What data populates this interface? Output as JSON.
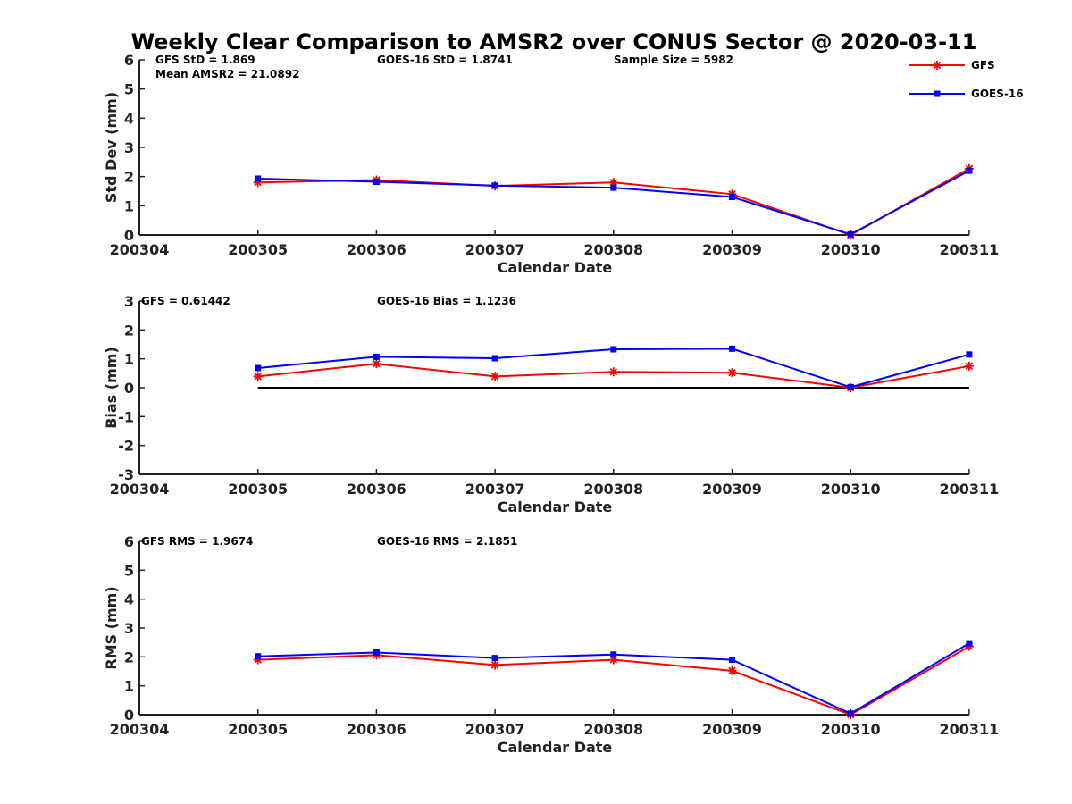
{
  "figure": {
    "title": "Weekly Clear Comparison to AMSR2 over CONUS Sector @ 2020-03-11"
  },
  "legend": {
    "placement": "top-right",
    "entries": [
      {
        "name": "GFS",
        "color": "#ff0000",
        "marker": "asterisk"
      },
      {
        "name": "GOES-16",
        "color": "#0000ff",
        "marker": "square"
      }
    ]
  },
  "chart_data": [
    {
      "type": "line",
      "id": "stddev",
      "title": "",
      "xlabel": "Calendar Date",
      "ylabel": "Std Dev (mm)",
      "categories": [
        "200304",
        "200305",
        "200306",
        "200307",
        "200308",
        "200309",
        "200310",
        "200311"
      ],
      "ylim": [
        0,
        6
      ],
      "yticks": [
        "0",
        "1",
        "2",
        "3",
        "4",
        "5",
        "6"
      ],
      "zero_line": false,
      "annotations": {
        "row1": [
          "GFS StD = 1.869",
          "GOES-16 StD = 1.8741",
          "Sample Size = 5982"
        ],
        "row2": [
          "Mean AMSR2 = 21.0892"
        ]
      },
      "series": [
        {
          "name": "GFS",
          "color": "#ff0000",
          "marker": "asterisk",
          "x": [
            "200305",
            "200306",
            "200307",
            "200308",
            "200309",
            "200310",
            "200311"
          ],
          "values": [
            1.8,
            1.88,
            1.68,
            1.8,
            1.4,
            0.0,
            2.27
          ]
        },
        {
          "name": "GOES-16",
          "color": "#0000ff",
          "marker": "square",
          "x": [
            "200305",
            "200306",
            "200307",
            "200308",
            "200309",
            "200310",
            "200311"
          ],
          "values": [
            1.93,
            1.82,
            1.69,
            1.62,
            1.3,
            0.02,
            2.2
          ]
        }
      ]
    },
    {
      "type": "line",
      "id": "bias",
      "title": "",
      "xlabel": "Calendar Date",
      "ylabel": "Bias (mm)",
      "categories": [
        "200304",
        "200305",
        "200306",
        "200307",
        "200308",
        "200309",
        "200310",
        "200311"
      ],
      "ylim": [
        -3,
        3
      ],
      "yticks": [
        "-3",
        "-2",
        "-1",
        "0",
        "1",
        "2",
        "3"
      ],
      "zero_line": true,
      "annotations": {
        "row1": [
          "GFS = 0.61442",
          "GOES-16 Bias  = 1.1236"
        ],
        "row2": []
      },
      "series": [
        {
          "name": "GFS",
          "color": "#ff0000",
          "marker": "asterisk",
          "x": [
            "200305",
            "200306",
            "200307",
            "200308",
            "200309",
            "200310",
            "200311"
          ],
          "values": [
            0.39,
            0.83,
            0.39,
            0.55,
            0.52,
            0.0,
            0.75
          ]
        },
        {
          "name": "GOES-16",
          "color": "#0000ff",
          "marker": "square",
          "x": [
            "200305",
            "200306",
            "200307",
            "200308",
            "200309",
            "200310",
            "200311"
          ],
          "values": [
            0.68,
            1.07,
            1.02,
            1.33,
            1.35,
            0.02,
            1.15
          ]
        }
      ]
    },
    {
      "type": "line",
      "id": "rms",
      "title": "",
      "xlabel": "Calendar Date",
      "ylabel": "RMS (mm)",
      "categories": [
        "200304",
        "200305",
        "200306",
        "200307",
        "200308",
        "200309",
        "200310",
        "200311"
      ],
      "ylim": [
        0,
        6
      ],
      "yticks": [
        "0",
        "1",
        "2",
        "3",
        "4",
        "5",
        "6"
      ],
      "zero_line": false,
      "annotations": {
        "row1": [
          "GFS RMS = 1.9674",
          "GOES-16 RMS = 2.1851"
        ],
        "row2": []
      },
      "series": [
        {
          "name": "GFS",
          "color": "#ff0000",
          "marker": "asterisk",
          "x": [
            "200305",
            "200306",
            "200307",
            "200308",
            "200309",
            "200310",
            "200311"
          ],
          "values": [
            1.9,
            2.06,
            1.72,
            1.9,
            1.52,
            0.0,
            2.36
          ]
        },
        {
          "name": "GOES-16",
          "color": "#0000ff",
          "marker": "square",
          "x": [
            "200305",
            "200306",
            "200307",
            "200308",
            "200309",
            "200310",
            "200311"
          ],
          "values": [
            2.02,
            2.15,
            1.96,
            2.08,
            1.9,
            0.04,
            2.47
          ]
        }
      ]
    }
  ]
}
